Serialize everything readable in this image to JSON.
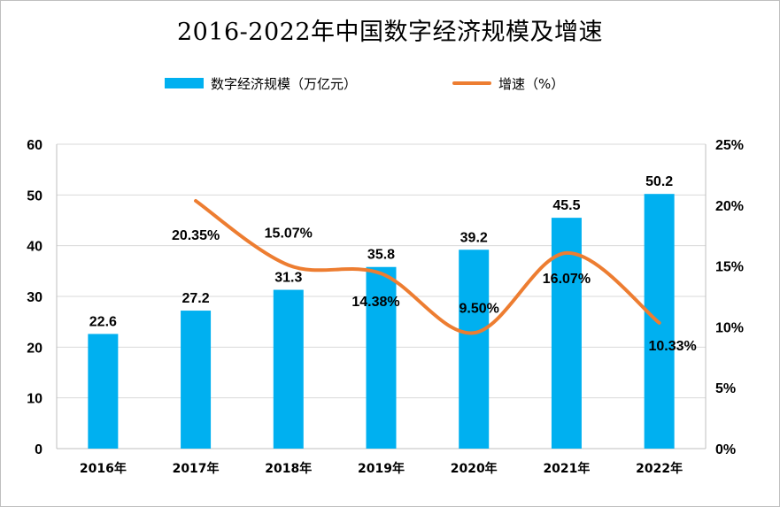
{
  "chart_data": {
    "type": "bar",
    "title": "2016-2022年中国数字经济规模及增速",
    "categories": [
      "2016年",
      "2017年",
      "2018年",
      "2019年",
      "2020年",
      "2021年",
      "2022年"
    ],
    "series": [
      {
        "name": "数字经济规模（万亿元）",
        "type": "bar",
        "axis": "left",
        "color": "#00b0f0",
        "values": [
          22.6,
          27.2,
          31.3,
          35.8,
          39.2,
          45.5,
          50.2
        ],
        "labels": [
          "22.6",
          "27.2",
          "31.3",
          "35.8",
          "39.2",
          "45.5",
          "50.2"
        ]
      },
      {
        "name": "增速（%）",
        "type": "line",
        "axis": "right",
        "color": "#ed7d31",
        "values": [
          null,
          20.35,
          15.07,
          14.38,
          9.5,
          16.07,
          10.33
        ],
        "labels": [
          "",
          "20.35%",
          "15.07%",
          "14.38%",
          "9.50%",
          "16.07%",
          "10.33%"
        ]
      }
    ],
    "y_left": {
      "ylim": [
        0,
        60
      ],
      "ticks": [
        "0",
        "10",
        "20",
        "30",
        "40",
        "50",
        "60"
      ]
    },
    "y_right": {
      "ylim": [
        0,
        25
      ],
      "ticks": [
        "0%",
        "5%",
        "10%",
        "15%",
        "20%",
        "25%"
      ]
    },
    "grid": "horizontal",
    "legend": "top-center"
  }
}
